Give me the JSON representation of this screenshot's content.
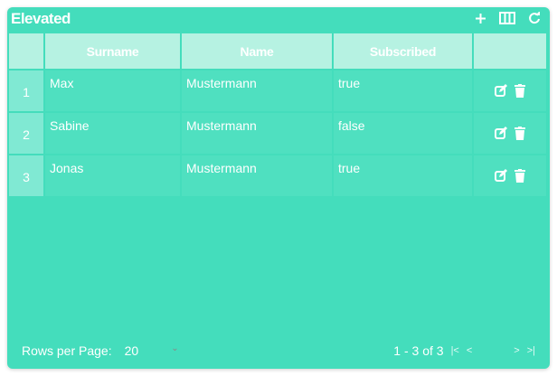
{
  "title": "Elevated",
  "toolbar": {
    "add": "+",
    "columns": "columns-icon",
    "refresh": "refresh-icon"
  },
  "columns": [
    "",
    "Surname",
    "Name",
    "Subscribed",
    ""
  ],
  "rows": [
    {
      "index": "1",
      "surname": "Max",
      "name": "Mustermann",
      "subscribed": "true"
    },
    {
      "index": "2",
      "surname": "Sabine",
      "name": "Mustermann",
      "subscribed": "false"
    },
    {
      "index": "3",
      "surname": "Jonas",
      "name": "Mustermann",
      "subscribed": "true"
    }
  ],
  "footer": {
    "rows_per_page_label": "Rows per Page:",
    "rows_per_page": "20",
    "range": "1 - 3 of 3"
  },
  "colors": {
    "background": "#44ddbc",
    "header": "#b6f2e2"
  }
}
